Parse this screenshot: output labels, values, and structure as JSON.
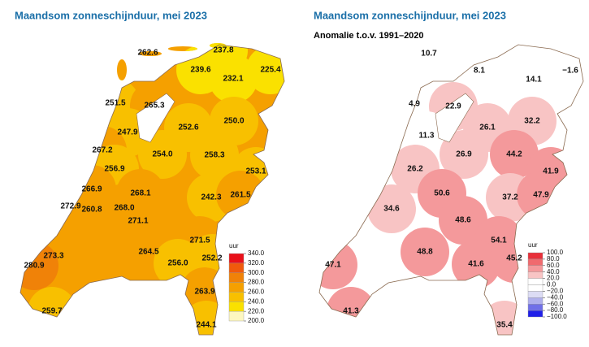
{
  "maps": [
    {
      "title": "Maandsom zonneschijnduur, mei 2023",
      "legend": {
        "unit": "uur",
        "ticks": [
          {
            "value": 340,
            "label": "340.0"
          },
          {
            "value": 320,
            "label": "320.0"
          },
          {
            "value": 300,
            "label": "300.0"
          },
          {
            "value": 280,
            "label": "280.0"
          },
          {
            "value": 260,
            "label": "260.0"
          },
          {
            "value": 240,
            "label": "240.0"
          },
          {
            "value": 220,
            "label": "220.0"
          },
          {
            "value": 200,
            "label": "200.0"
          }
        ],
        "colors": [
          "#e8101a",
          "#f05a0c",
          "#f08208",
          "#f5a000",
          "#f8c000",
          "#fae100",
          "#fdf7c0"
        ]
      },
      "values": [
        "262.6",
        "237.8",
        "239.6",
        "232.1",
        "225.4",
        "251.5",
        "265.3",
        "247.9",
        "252.6",
        "250.0",
        "267.2",
        "254.0",
        "258.3",
        "256.9",
        "253.1",
        "266.9",
        "268.1",
        "242.3",
        "261.5",
        "272.9",
        "260.8",
        "268.0",
        "271.1",
        "271.5",
        "273.3",
        "264.5",
        "256.0",
        "252.2",
        "280.9",
        "259.7",
        "263.9",
        "244.1"
      ]
    },
    {
      "title": "Maandsom zonneschijnduur, mei 2023",
      "subtitle": "Anomalie t.o.v. 1991–2020",
      "legend": {
        "unit": "uur",
        "ticks": [
          {
            "value": 100,
            "label": "100.0"
          },
          {
            "value": 80,
            "label": "80.0"
          },
          {
            "value": 60,
            "label": "60.0"
          },
          {
            "value": 40,
            "label": "40.0"
          },
          {
            "value": 20,
            "label": "20.0"
          },
          {
            "value": 0,
            "label": "0.0"
          },
          {
            "value": -20,
            "label": "−20.0"
          },
          {
            "value": -40,
            "label": "−40.0"
          },
          {
            "value": -60,
            "label": "−60.0"
          },
          {
            "value": -80,
            "label": "−80.0"
          },
          {
            "value": -100,
            "label": "−100.0"
          }
        ],
        "colors": [
          "#e8303a",
          "#f06a6e",
          "#f4999b",
          "#f8c4c4",
          "#ffffff",
          "#ffffff",
          "#dcdcf4",
          "#b0b0ec",
          "#7070e8",
          "#2020e8"
        ]
      },
      "values": [
        "10.7",
        "8.1",
        "14.1",
        "−1.6",
        "4.9",
        "22.9",
        "26.1",
        "32.2",
        "11.3",
        "26.9",
        "44.2",
        "26.2",
        "41.9",
        "50.6",
        "37.2",
        "47.9",
        "34.6",
        "48.6",
        "54.1",
        "48.8",
        "41.6",
        "45.2",
        "47.1",
        "41.3",
        "35.4"
      ]
    }
  ]
}
